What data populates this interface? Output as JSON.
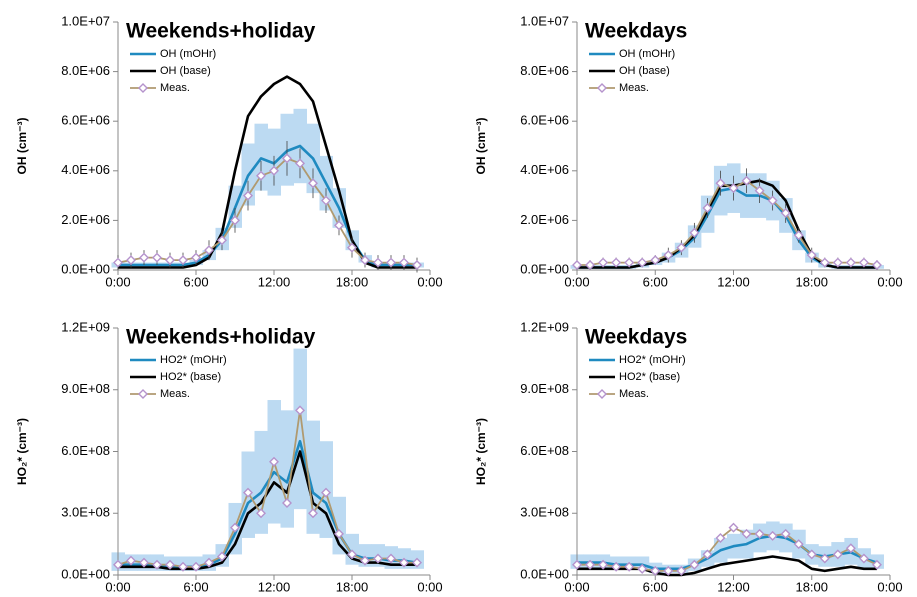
{
  "chart_data": [
    {
      "type": "line",
      "title": "Weekends+holiday",
      "y_label": "OH (cm⁻³)",
      "x": [
        0,
        1,
        2,
        3,
        4,
        5,
        6,
        7,
        8,
        9,
        10,
        11,
        12,
        13,
        14,
        15,
        16,
        17,
        18,
        19,
        20,
        21,
        22,
        23
      ],
      "xlim": [
        0,
        24
      ],
      "xticks": [
        {
          "value": 0,
          "label": "0:00"
        },
        {
          "value": 6,
          "label": "6:00"
        },
        {
          "value": 12,
          "label": "12:00"
        },
        {
          "value": 18,
          "label": "18:00"
        },
        {
          "value": 24,
          "label": "0:00"
        }
      ],
      "ylim": [
        0,
        10000000.0
      ],
      "yticks": [
        {
          "value": 0,
          "label": "0.0E+00"
        },
        {
          "value": 2000000.0,
          "label": "2.0E+06"
        },
        {
          "value": 4000000.0,
          "label": "4.0E+06"
        },
        {
          "value": 6000000.0,
          "label": "6.0E+06"
        },
        {
          "value": 8000000.0,
          "label": "8.0E+06"
        },
        {
          "value": 10000000.0,
          "label": "1.0E+07"
        }
      ],
      "band": {
        "color": "#bcdaf2",
        "lower": [
          100000.0,
          100000.0,
          100000.0,
          100000.0,
          100000.0,
          100000.0,
          200000.0,
          400000.0,
          800000.0,
          1700000.0,
          2600000.0,
          3200000.0,
          3000000.0,
          3400000.0,
          3500000.0,
          3100000.0,
          2400000.0,
          1700000.0,
          800000.0,
          300000.0,
          100000.0,
          100000.0,
          100000.0,
          100000.0
        ],
        "upper": [
          300000.0,
          300000.0,
          300000.0,
          300000.0,
          300000.0,
          300000.0,
          400000.0,
          800000.0,
          1700000.0,
          3400000.0,
          5100000.0,
          5900000.0,
          5700000.0,
          6300000.0,
          6500000.0,
          5900000.0,
          4600000.0,
          3300000.0,
          1600000.0,
          600000.0,
          300000.0,
          300000.0,
          300000.0,
          300000.0
        ]
      },
      "series": [
        {
          "name": "OH (mOHr)",
          "color": "#1f8ac0",
          "values": [
            200000.0,
            200000.0,
            200000.0,
            200000.0,
            200000.0,
            200000.0,
            300000.0,
            600000.0,
            1200000.0,
            2500000.0,
            3800000.0,
            4500000.0,
            4300000.0,
            4800000.0,
            5000000.0,
            4500000.0,
            3500000.0,
            2500000.0,
            1200000.0,
            400000.0,
            200000.0,
            200000.0,
            200000.0,
            200000.0
          ]
        },
        {
          "name": "OH (base)",
          "color": "#000000",
          "values": [
            100000.0,
            100000.0,
            100000.0,
            100000.0,
            100000.0,
            100000.0,
            200000.0,
            500000.0,
            1500000.0,
            4000000.0,
            6200000.0,
            7000000.0,
            7500000.0,
            7800000.0,
            7500000.0,
            6800000.0,
            5000000.0,
            3200000.0,
            1200000.0,
            300000.0,
            100000.0,
            100000.0,
            100000.0,
            100000.0
          ]
        },
        {
          "name": "Meas.",
          "color": "#b09a70",
          "marker_color": "#b593cc",
          "values": [
            300000.0,
            400000.0,
            500000.0,
            500000.0,
            400000.0,
            400000.0,
            500000.0,
            800000.0,
            1200000.0,
            2000000.0,
            3000000.0,
            3800000.0,
            4000000.0,
            4500000.0,
            4300000.0,
            3500000.0,
            2800000.0,
            1800000.0,
            900000.0,
            400000.0,
            300000.0,
            300000.0,
            300000.0,
            200000.0
          ],
          "errors": [
            300000.0,
            300000.0,
            300000.0,
            300000.0,
            300000.0,
            300000.0,
            300000.0,
            400000.0,
            400000.0,
            500000.0,
            600000.0,
            600000.0,
            600000.0,
            700000.0,
            600000.0,
            600000.0,
            500000.0,
            400000.0,
            400000.0,
            300000.0,
            300000.0,
            300000.0,
            300000.0,
            300000.0
          ]
        }
      ]
    },
    {
      "type": "line",
      "title": "Weekdays",
      "y_label": "OH (cm⁻³)",
      "x": [
        0,
        1,
        2,
        3,
        4,
        5,
        6,
        7,
        8,
        9,
        10,
        11,
        12,
        13,
        14,
        15,
        16,
        17,
        18,
        19,
        20,
        21,
        22,
        23
      ],
      "xlim": [
        0,
        24
      ],
      "xticks": [
        {
          "value": 0,
          "label": "0:00"
        },
        {
          "value": 6,
          "label": "6:00"
        },
        {
          "value": 12,
          "label": "12:00"
        },
        {
          "value": 18,
          "label": "18:00"
        },
        {
          "value": 24,
          "label": "0:00"
        }
      ],
      "ylim": [
        0,
        10000000.0
      ],
      "yticks": [
        {
          "value": 0,
          "label": "0.0E+00"
        },
        {
          "value": 2000000.0,
          "label": "2.0E+06"
        },
        {
          "value": 4000000.0,
          "label": "4.0E+06"
        },
        {
          "value": 6000000.0,
          "label": "6.0E+06"
        },
        {
          "value": 8000000.0,
          "label": "8.0E+06"
        },
        {
          "value": 10000000.0,
          "label": "1.0E+07"
        }
      ],
      "band": {
        "color": "#bcdaf2",
        "lower": [
          50000.0,
          50000.0,
          50000.0,
          50000.0,
          50000.0,
          100000.0,
          200000.0,
          300000.0,
          500000.0,
          900000.0,
          1500000.0,
          2200000.0,
          2300000.0,
          2100000.0,
          2100000.0,
          2000000.0,
          1500000.0,
          800000.0,
          300000.0,
          100000.0,
          50000.0,
          50000.0,
          50000.0,
          50000.0
        ],
        "upper": [
          200000.0,
          200000.0,
          200000.0,
          200000.0,
          200000.0,
          300000.0,
          400000.0,
          700000.0,
          1100000.0,
          1800000.0,
          3000000.0,
          4200000.0,
          4300000.0,
          3900000.0,
          3900000.0,
          3600000.0,
          2900000.0,
          1600000.0,
          700000.0,
          300000.0,
          200000.0,
          200000.0,
          200000.0,
          200000.0
        ]
      },
      "series": [
        {
          "name": "OH (mOHr)",
          "color": "#1f8ac0",
          "values": [
            100000.0,
            100000.0,
            100000.0,
            100000.0,
            100000.0,
            200000.0,
            300000.0,
            500000.0,
            800000.0,
            1300000.0,
            2200000.0,
            3200000.0,
            3300000.0,
            3000000.0,
            3000000.0,
            2800000.0,
            2200000.0,
            1200000.0,
            500000.0,
            200000.0,
            100000.0,
            100000.0,
            100000.0,
            100000.0
          ]
        },
        {
          "name": "OH (base)",
          "color": "#000000",
          "values": [
            100000.0,
            100000.0,
            100000.0,
            100000.0,
            100000.0,
            200000.0,
            300000.0,
            500000.0,
            900000.0,
            1400000.0,
            2400000.0,
            3400000.0,
            3400000.0,
            3500000.0,
            3600000.0,
            3400000.0,
            2800000.0,
            1600000.0,
            600000.0,
            200000.0,
            100000.0,
            100000.0,
            100000.0,
            100000.0
          ]
        },
        {
          "name": "Meas.",
          "color": "#b09a70",
          "marker_color": "#b593cc",
          "values": [
            200000.0,
            200000.0,
            300000.0,
            300000.0,
            300000.0,
            300000.0,
            400000.0,
            600000.0,
            900000.0,
            1500000.0,
            2500000.0,
            3500000.0,
            3300000.0,
            3600000.0,
            3200000.0,
            2800000.0,
            2300000.0,
            1400000.0,
            600000.0,
            300000.0,
            300000.0,
            300000.0,
            300000.0,
            200000.0
          ],
          "errors": [
            200000.0,
            200000.0,
            200000.0,
            200000.0,
            200000.0,
            200000.0,
            200000.0,
            300000.0,
            300000.0,
            400000.0,
            400000.0,
            500000.0,
            500000.0,
            500000.0,
            500000.0,
            400000.0,
            400000.0,
            300000.0,
            300000.0,
            200000.0,
            200000.0,
            200000.0,
            200000.0,
            200000.0
          ]
        }
      ]
    },
    {
      "type": "line",
      "title": "Weekends+holiday",
      "y_label": "HO₂* (cm⁻³)",
      "x": [
        0,
        1,
        2,
        3,
        4,
        5,
        6,
        7,
        8,
        9,
        10,
        11,
        12,
        13,
        14,
        15,
        16,
        17,
        18,
        19,
        20,
        21,
        22,
        23
      ],
      "xlim": [
        0,
        24
      ],
      "xticks": [
        {
          "value": 0,
          "label": "0:00"
        },
        {
          "value": 6,
          "label": "6:00"
        },
        {
          "value": 12,
          "label": "12:00"
        },
        {
          "value": 18,
          "label": "18:00"
        },
        {
          "value": 24,
          "label": "0:00"
        }
      ],
      "ylim": [
        0,
        1200000000.0
      ],
      "yticks": [
        {
          "value": 0,
          "label": "0.0E+00"
        },
        {
          "value": 300000000.0,
          "label": "3.0E+08"
        },
        {
          "value": 600000000.0,
          "label": "6.0E+08"
        },
        {
          "value": 900000000.0,
          "label": "9.0E+08"
        },
        {
          "value": 1200000000.0,
          "label": "1.2E+09"
        }
      ],
      "band": {
        "color": "#bcdaf2",
        "lower": [
          20000000.0,
          20000000.0,
          20000000.0,
          20000000.0,
          20000000.0,
          20000000.0,
          20000000.0,
          20000000.0,
          40000000.0,
          100000000.0,
          180000000.0,
          200000000.0,
          250000000.0,
          230000000.0,
          320000000.0,
          200000000.0,
          180000000.0,
          100000000.0,
          50000000.0,
          40000000.0,
          40000000.0,
          30000000.0,
          30000000.0,
          30000000.0
        ],
        "upper": [
          110000000.0,
          100000000.0,
          100000000.0,
          100000000.0,
          90000000.0,
          90000000.0,
          90000000.0,
          100000000.0,
          150000000.0,
          350000000.0,
          600000000.0,
          700000000.0,
          850000000.0,
          800000000.0,
          1100000000.0,
          750000000.0,
          650000000.0,
          380000000.0,
          200000000.0,
          150000000.0,
          150000000.0,
          140000000.0,
          130000000.0,
          120000000.0
        ]
      },
      "series": [
        {
          "name": "HO2* (mOHr)",
          "color": "#1f8ac0",
          "values": [
            50000000.0,
            50000000.0,
            50000000.0,
            50000000.0,
            40000000.0,
            40000000.0,
            40000000.0,
            50000000.0,
            80000000.0,
            200000000.0,
            350000000.0,
            400000000.0,
            500000000.0,
            450000000.0,
            650000000.0,
            400000000.0,
            350000000.0,
            200000000.0,
            100000000.0,
            80000000.0,
            80000000.0,
            70000000.0,
            70000000.0,
            60000000.0
          ]
        },
        {
          "name": "HO2* (base)",
          "color": "#000000",
          "values": [
            40000000.0,
            40000000.0,
            40000000.0,
            40000000.0,
            30000000.0,
            30000000.0,
            30000000.0,
            40000000.0,
            60000000.0,
            150000000.0,
            300000000.0,
            350000000.0,
            450000000.0,
            400000000.0,
            600000000.0,
            350000000.0,
            300000000.0,
            150000000.0,
            80000000.0,
            60000000.0,
            60000000.0,
            50000000.0,
            50000000.0,
            50000000.0
          ]
        },
        {
          "name": "Meas.",
          "color": "#b09a70",
          "marker_color": "#b593cc",
          "values": [
            50000000.0,
            70000000.0,
            60000000.0,
            50000000.0,
            50000000.0,
            40000000.0,
            40000000.0,
            60000000.0,
            90000000.0,
            230000000.0,
            400000000.0,
            300000000.0,
            550000000.0,
            350000000.0,
            800000000.0,
            300000000.0,
            400000000.0,
            200000000.0,
            100000000.0,
            70000000.0,
            80000000.0,
            80000000.0,
            60000000.0,
            60000000.0
          ]
        }
      ]
    },
    {
      "type": "line",
      "title": "Weekdays",
      "y_label": "HO₂* (cm⁻³)",
      "x": [
        0,
        1,
        2,
        3,
        4,
        5,
        6,
        7,
        8,
        9,
        10,
        11,
        12,
        13,
        14,
        15,
        16,
        17,
        18,
        19,
        20,
        21,
        22,
        23
      ],
      "xlim": [
        0,
        24
      ],
      "xticks": [
        {
          "value": 0,
          "label": "0:00"
        },
        {
          "value": 6,
          "label": "6:00"
        },
        {
          "value": 12,
          "label": "12:00"
        },
        {
          "value": 18,
          "label": "18:00"
        },
        {
          "value": 24,
          "label": "0:00"
        }
      ],
      "ylim": [
        0,
        1200000000.0
      ],
      "yticks": [
        {
          "value": 0,
          "label": "0.0E+00"
        },
        {
          "value": 300000000.0,
          "label": "3.0E+08"
        },
        {
          "value": 600000000.0,
          "label": "6.0E+08"
        },
        {
          "value": 900000000.0,
          "label": "9.0E+08"
        },
        {
          "value": 1200000000.0,
          "label": "1.2E+09"
        }
      ],
      "band": {
        "color": "#bcdaf2",
        "lower": [
          30000000.0,
          30000000.0,
          30000000.0,
          30000000.0,
          30000000.0,
          30000000.0,
          10000000.0,
          10000000.0,
          10000000.0,
          20000000.0,
          40000000.0,
          60000000.0,
          80000000.0,
          80000000.0,
          110000000.0,
          120000000.0,
          110000000.0,
          80000000.0,
          50000000.0,
          40000000.0,
          40000000.0,
          50000000.0,
          30000000.0,
          30000000.0
        ],
        "upper": [
          100000000.0,
          100000000.0,
          100000000.0,
          90000000.0,
          90000000.0,
          90000000.0,
          60000000.0,
          50000000.0,
          50000000.0,
          80000000.0,
          120000000.0,
          180000000.0,
          200000000.0,
          220000000.0,
          250000000.0,
          260000000.0,
          250000000.0,
          220000000.0,
          150000000.0,
          140000000.0,
          160000000.0,
          180000000.0,
          130000000.0,
          100000000.0
        ]
      },
      "series": [
        {
          "name": "HO2* (mOHr)",
          "color": "#1f8ac0",
          "values": [
            60000000.0,
            60000000.0,
            60000000.0,
            50000000.0,
            50000000.0,
            50000000.0,
            30000000.0,
            30000000.0,
            30000000.0,
            50000000.0,
            80000000.0,
            120000000.0,
            140000000.0,
            150000000.0,
            180000000.0,
            190000000.0,
            180000000.0,
            150000000.0,
            100000000.0,
            90000000.0,
            100000000.0,
            110000000.0,
            80000000.0,
            60000000.0
          ]
        },
        {
          "name": "HO2* (base)",
          "color": "#000000",
          "values": [
            30000000.0,
            30000000.0,
            30000000.0,
            30000000.0,
            30000000.0,
            30000000.0,
            10000000.0,
            0,
            0,
            10000000.0,
            30000000.0,
            50000000.0,
            60000000.0,
            70000000.0,
            80000000.0,
            90000000.0,
            80000000.0,
            70000000.0,
            30000000.0,
            20000000.0,
            30000000.0,
            40000000.0,
            30000000.0,
            30000000.0
          ]
        },
        {
          "name": "Meas.",
          "color": "#b09a70",
          "marker_color": "#b593cc",
          "values": [
            50000000.0,
            50000000.0,
            50000000.0,
            40000000.0,
            40000000.0,
            30000000.0,
            20000000.0,
            20000000.0,
            20000000.0,
            50000000.0,
            100000000.0,
            180000000.0,
            230000000.0,
            200000000.0,
            200000000.0,
            190000000.0,
            200000000.0,
            150000000.0,
            100000000.0,
            80000000.0,
            100000000.0,
            130000000.0,
            80000000.0,
            50000000.0
          ]
        }
      ]
    }
  ]
}
